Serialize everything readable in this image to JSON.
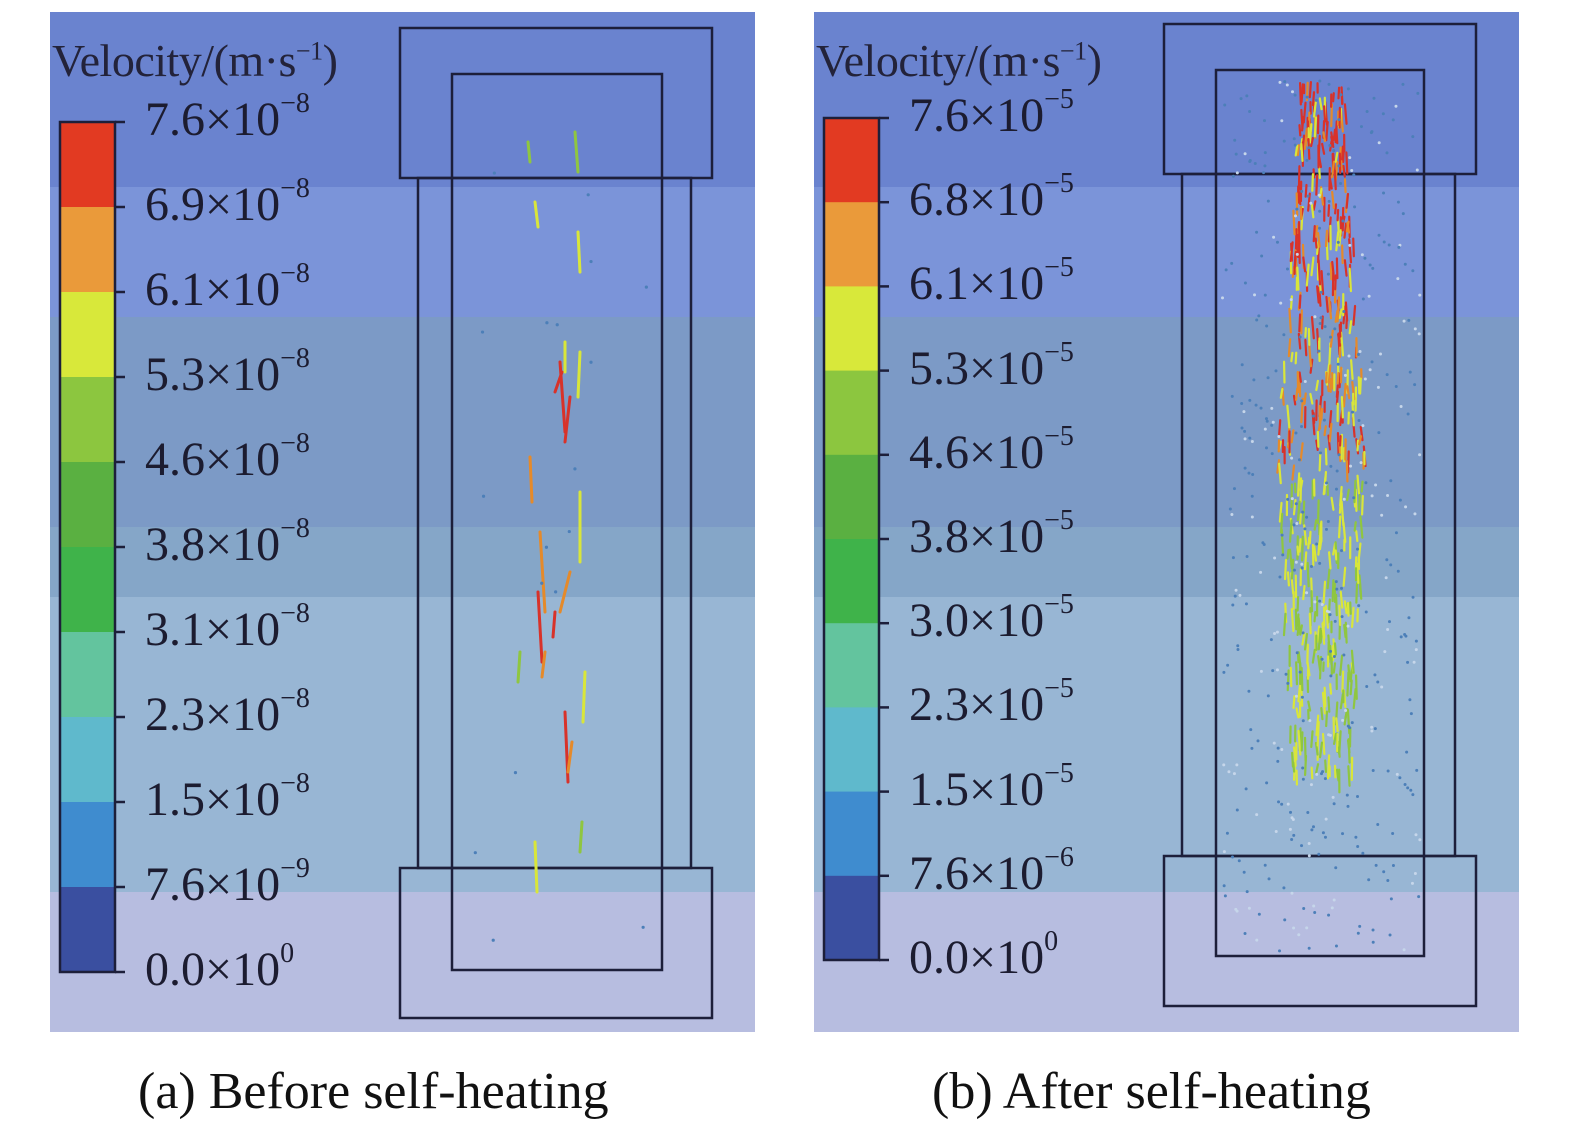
{
  "panels": [
    {
      "id": "a",
      "legend_title": "Velocity/(m·s",
      "legend_title_exp": "−1",
      "legend_title_close": ")",
      "ticks": [
        {
          "m": "7.6",
          "e": "−8"
        },
        {
          "m": "6.9",
          "e": "−8"
        },
        {
          "m": "6.1",
          "e": "−8"
        },
        {
          "m": "5.3",
          "e": "−8"
        },
        {
          "m": "4.6",
          "e": "−8"
        },
        {
          "m": "3.8",
          "e": "−8"
        },
        {
          "m": "3.1",
          "e": "−8"
        },
        {
          "m": "2.3",
          "e": "−8"
        },
        {
          "m": "1.5",
          "e": "−8"
        },
        {
          "m": "7.6",
          "e": "−9"
        },
        {
          "m": "0.0",
          "e": "0"
        }
      ],
      "caption": "(a)  Before self-heating"
    },
    {
      "id": "b",
      "legend_title": "Velocity/(m·s",
      "legend_title_exp": "−1",
      "legend_title_close": ")",
      "ticks": [
        {
          "m": "7.6",
          "e": "−5"
        },
        {
          "m": "6.8",
          "e": "−5"
        },
        {
          "m": "6.1",
          "e": "−5"
        },
        {
          "m": "5.3",
          "e": "−5"
        },
        {
          "m": "4.6",
          "e": "−5"
        },
        {
          "m": "3.8",
          "e": "−5"
        },
        {
          "m": "3.0",
          "e": "−5"
        },
        {
          "m": "2.3",
          "e": "−5"
        },
        {
          "m": "1.5",
          "e": "−5"
        },
        {
          "m": "7.6",
          "e": "−6"
        },
        {
          "m": "0.0",
          "e": "0"
        }
      ],
      "caption": "(b) After self-heating"
    }
  ],
  "colors": {
    "colorbar": [
      "#e23a22",
      "#ea9a3a",
      "#d8e83a",
      "#8cc63f",
      "#5ab041",
      "#3fb34a",
      "#63c49e",
      "#5fb9cc",
      "#3f8ccf",
      "#3a4fa0"
    ],
    "background_bands": [
      "#6a83cf",
      "#7b94d9",
      "#7c9ac6",
      "#85a6c8",
      "#98b6d4",
      "#b7bde0"
    ],
    "vector_hot": "#d8322a",
    "vector_warm": "#e58a2a",
    "vector_yellow": "#d9e63a",
    "vector_green": "#8fc640",
    "vector_cool": "#4c7fb8",
    "outline": "#1d1f3a"
  }
}
